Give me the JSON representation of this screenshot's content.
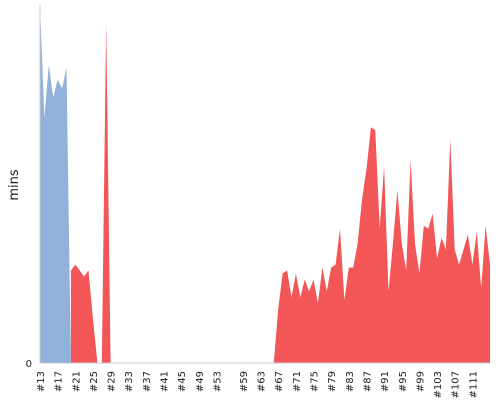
{
  "chart_data": {
    "type": "area",
    "title": "",
    "xlabel": "",
    "ylabel": "mins",
    "y_tick_labels": [
      "0"
    ],
    "ylim": [
      0,
      120
    ],
    "grid": false,
    "colors": {
      "success": "#8fb1dc",
      "failure": "#f25656",
      "axis": "#c8c8c8"
    },
    "x_tick_labels": [
      "#13",
      "#17",
      "#21",
      "#25",
      "#29",
      "#33",
      "#37",
      "#41",
      "#45",
      "#49",
      "#53",
      "#59",
      "#63",
      "#67",
      "#71",
      "#75",
      "#79",
      "#83",
      "#87",
      "#91",
      "#95",
      "#99",
      "#103",
      "#107",
      "#111"
    ],
    "series": [
      {
        "status": "success",
        "points": [
          {
            "build": "#13",
            "value": 120
          },
          {
            "build": "#14",
            "value": 82
          },
          {
            "build": "#15",
            "value": 100
          },
          {
            "build": "#16",
            "value": 89
          },
          {
            "build": "#17",
            "value": 95
          },
          {
            "build": "#18",
            "value": 92
          },
          {
            "build": "#19",
            "value": 99
          },
          {
            "build": "#20",
            "value": 0
          },
          {
            "build": "#21",
            "value": 0
          },
          {
            "build": "#22",
            "value": 0
          },
          {
            "build": "#23",
            "value": 0
          },
          {
            "build": "#24",
            "value": 0
          },
          {
            "build": "#25",
            "value": 0
          },
          {
            "build": "#26",
            "value": 0
          },
          {
            "build": "#27",
            "value": 0
          },
          {
            "build": "#28",
            "value": 3
          },
          {
            "build": "#29",
            "value": 3
          }
        ]
      },
      {
        "status": "failure",
        "points": [
          {
            "build": "#20",
            "value": 31
          },
          {
            "build": "#21",
            "value": 33
          },
          {
            "build": "#22",
            "value": 31
          },
          {
            "build": "#23",
            "value": 29
          },
          {
            "build": "#24",
            "value": 31
          },
          {
            "build": "#25",
            "value": 15
          },
          {
            "build": "#26",
            "value": 0
          },
          {
            "build": "#27",
            "value": 0
          },
          {
            "build": "#28",
            "value": 114
          },
          {
            "build": "#29",
            "value": 0
          },
          {
            "build": "#66",
            "value": 0
          },
          {
            "build": "#67",
            "value": 18
          },
          {
            "build": "#68",
            "value": 30
          },
          {
            "build": "#69",
            "value": 31
          },
          {
            "build": "#70",
            "value": 22
          },
          {
            "build": "#71",
            "value": 30
          },
          {
            "build": "#72",
            "value": 22
          },
          {
            "build": "#73",
            "value": 28
          },
          {
            "build": "#74",
            "value": 24
          },
          {
            "build": "#75",
            "value": 28
          },
          {
            "build": "#76",
            "value": 20
          },
          {
            "build": "#77",
            "value": 32
          },
          {
            "build": "#78",
            "value": 24
          },
          {
            "build": "#79",
            "value": 32
          },
          {
            "build": "#80",
            "value": 33
          },
          {
            "build": "#81",
            "value": 45
          },
          {
            "build": "#82",
            "value": 21
          },
          {
            "build": "#83",
            "value": 32
          },
          {
            "build": "#84",
            "value": 32
          },
          {
            "build": "#85",
            "value": 40
          },
          {
            "build": "#86",
            "value": 55
          },
          {
            "build": "#87",
            "value": 65
          },
          {
            "build": "#88",
            "value": 79
          },
          {
            "build": "#89",
            "value": 78
          },
          {
            "build": "#90",
            "value": 45
          },
          {
            "build": "#91",
            "value": 66
          },
          {
            "build": "#92",
            "value": 24
          },
          {
            "build": "#93",
            "value": 40
          },
          {
            "build": "#94",
            "value": 58
          },
          {
            "build": "#95",
            "value": 40
          },
          {
            "build": "#96",
            "value": 31
          },
          {
            "build": "#97",
            "value": 68
          },
          {
            "build": "#98",
            "value": 40
          },
          {
            "build": "#99",
            "value": 30
          },
          {
            "build": "#100",
            "value": 46
          },
          {
            "build": "#101",
            "value": 45
          },
          {
            "build": "#102",
            "value": 50
          },
          {
            "build": "#103",
            "value": 35
          },
          {
            "build": "#104",
            "value": 42
          },
          {
            "build": "#105",
            "value": 38
          },
          {
            "build": "#106",
            "value": 75
          },
          {
            "build": "#107",
            "value": 38
          },
          {
            "build": "#108",
            "value": 33
          },
          {
            "build": "#109",
            "value": 38
          },
          {
            "build": "#110",
            "value": 43
          },
          {
            "build": "#111",
            "value": 33
          },
          {
            "build": "#112",
            "value": 44
          },
          {
            "build": "#113",
            "value": 25
          },
          {
            "build": "#114",
            "value": 46
          },
          {
            "build": "#115",
            "value": 33
          }
        ]
      }
    ]
  }
}
